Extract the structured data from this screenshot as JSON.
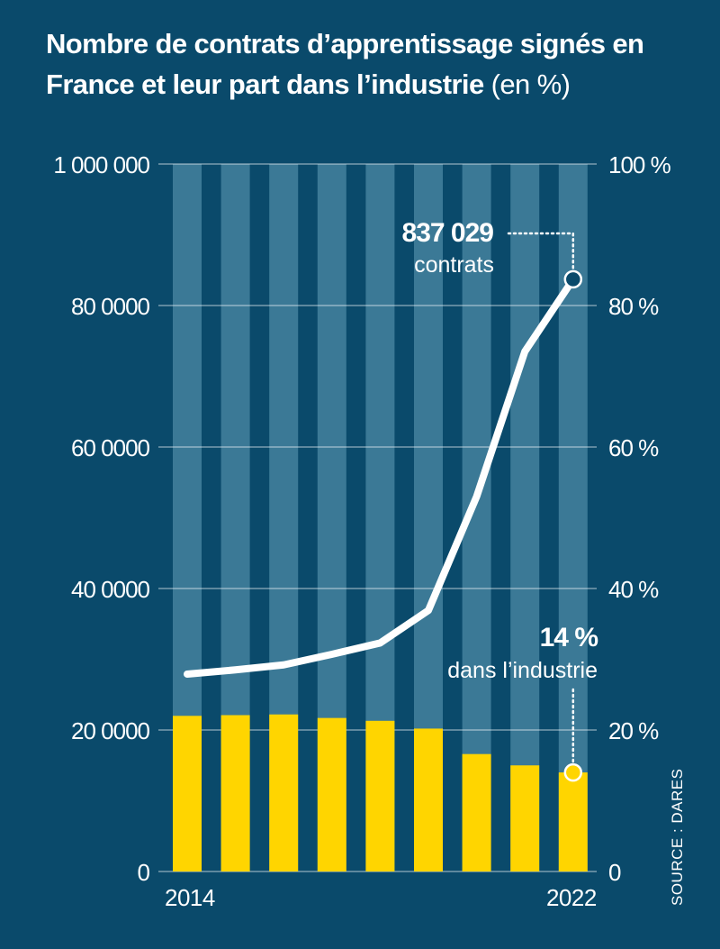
{
  "title": {
    "bold": "Nombre de contrats d’apprentissage signés en France et leur part dans l’industrie",
    "light": "(en %)"
  },
  "colors": {
    "background": "#0a4a6b",
    "bar_background": "#3b7996",
    "bar_share": "#ffd500",
    "line": "#ffffff"
  },
  "source": "SOURCE : DARES",
  "chart_data": {
    "type": "bar+line",
    "x": [
      2014,
      2015,
      2016,
      2017,
      2018,
      2019,
      2020,
      2021,
      2022
    ],
    "x_tick_labels": [
      "2014",
      "",
      "",
      "",
      "",
      "",
      "",
      "",
      "2022"
    ],
    "left_axis": {
      "range": [
        0,
        1000000
      ],
      "ticks": [
        0,
        200000,
        400000,
        600000,
        800000,
        1000000
      ],
      "tick_labels": [
        "0",
        "20 0000",
        "40 0000",
        "60 0000",
        "80 0000",
        "1 000 000"
      ]
    },
    "right_axis": {
      "range": [
        0,
        100
      ],
      "ticks": [
        0,
        20,
        40,
        60,
        80,
        100
      ],
      "tick_labels": [
        "0",
        "20 %",
        "40 %",
        "60 %",
        "80 %",
        "100 %"
      ]
    },
    "grid": true,
    "series": [
      {
        "type": "line",
        "axis": "left",
        "values": [
          279000,
          285000,
          292000,
          307000,
          323000,
          369000,
          530000,
          735000,
          837029
        ]
      },
      {
        "type": "bar",
        "axis": "right",
        "values": [
          22,
          22.1,
          22.2,
          21.7,
          21.3,
          20.2,
          16.6,
          15.0,
          14
        ]
      }
    ],
    "annotations": [
      {
        "value": "837 029",
        "text": "contrats"
      },
      {
        "value": "14 %",
        "text": "dans l’industrie"
      }
    ]
  }
}
